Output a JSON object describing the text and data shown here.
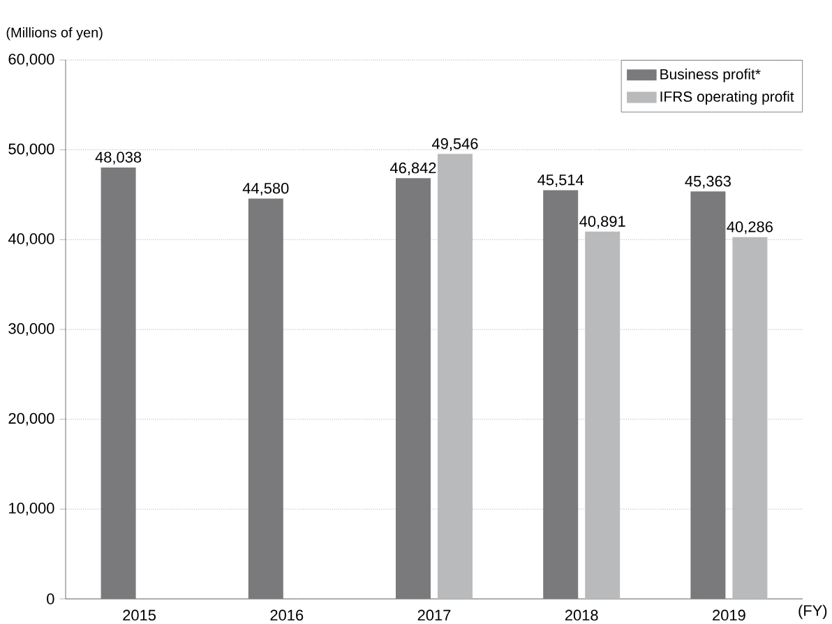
{
  "chart_data": {
    "type": "bar",
    "ylabel": "(Millions of yen)",
    "xlabel": "(FY)",
    "categories": [
      "2015",
      "2016",
      "2017",
      "2018",
      "2019"
    ],
    "series": [
      {
        "name": "Business profit*",
        "color": "#7a7a7c",
        "values": [
          48038,
          44580,
          46842,
          45514,
          45363
        ],
        "value_labels": [
          "48,038",
          "44,580",
          "46,842",
          "45,514",
          "45,363"
        ]
      },
      {
        "name": "IFRS operating profit",
        "color": "#b9babc",
        "values": [
          null,
          null,
          49546,
          40891,
          40286
        ],
        "value_labels": [
          null,
          null,
          "49,546",
          "40,891",
          "40,286"
        ]
      }
    ],
    "ylim": [
      0,
      60000
    ],
    "yticks": [
      {
        "value": 0,
        "label": "0"
      },
      {
        "value": 10000,
        "label": "10,000"
      },
      {
        "value": 20000,
        "label": "20,000"
      },
      {
        "value": 30000,
        "label": "30,000"
      },
      {
        "value": 40000,
        "label": "40,000"
      },
      {
        "value": 50000,
        "label": "50,000"
      },
      {
        "value": 60000,
        "label": "60,000"
      }
    ],
    "grid": "y",
    "legend": "top right"
  }
}
